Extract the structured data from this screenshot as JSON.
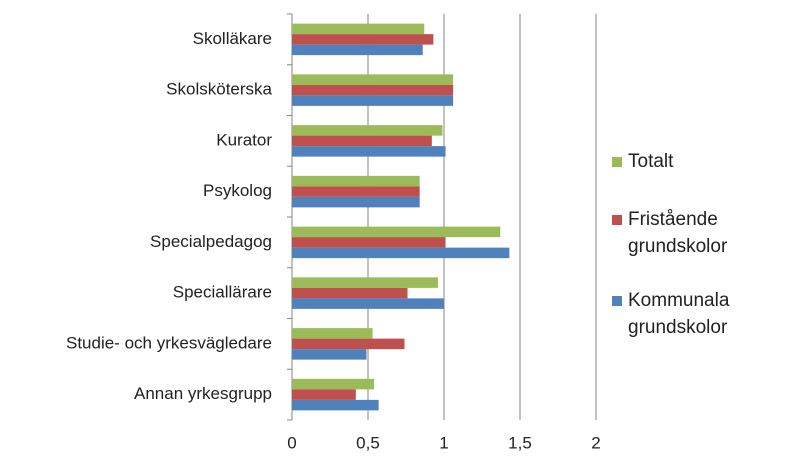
{
  "chart_data": {
    "type": "hbar",
    "categories": [
      "Skolläkare",
      "Skolsköterska",
      "Kurator",
      "Psykolog",
      "Specialpedagog",
      "Speciallärare",
      "Studie- och yrkesvägledare",
      "Annan yrkesgrupp"
    ],
    "series": [
      {
        "name": "Totalt",
        "color": "#9bbb59",
        "values": [
          0.87,
          1.06,
          0.99,
          0.84,
          1.37,
          0.96,
          0.53,
          0.54
        ]
      },
      {
        "name": "Fristående grundskolor",
        "color": "#c0504d",
        "values": [
          0.93,
          1.06,
          0.92,
          0.84,
          1.01,
          0.76,
          0.74,
          0.42
        ]
      },
      {
        "name": "Kommunala grundskolor",
        "color": "#4f81bd",
        "values": [
          0.86,
          1.06,
          1.01,
          0.84,
          1.43,
          1.0,
          0.49,
          0.57
        ]
      }
    ],
    "xlim": [
      0,
      2
    ],
    "xticks": [
      0,
      {
        "value": 0.5,
        "label": "0,5"
      },
      1,
      {
        "value": 1.5,
        "label": "1,5"
      },
      2
    ],
    "grid": true,
    "legend": "right"
  }
}
